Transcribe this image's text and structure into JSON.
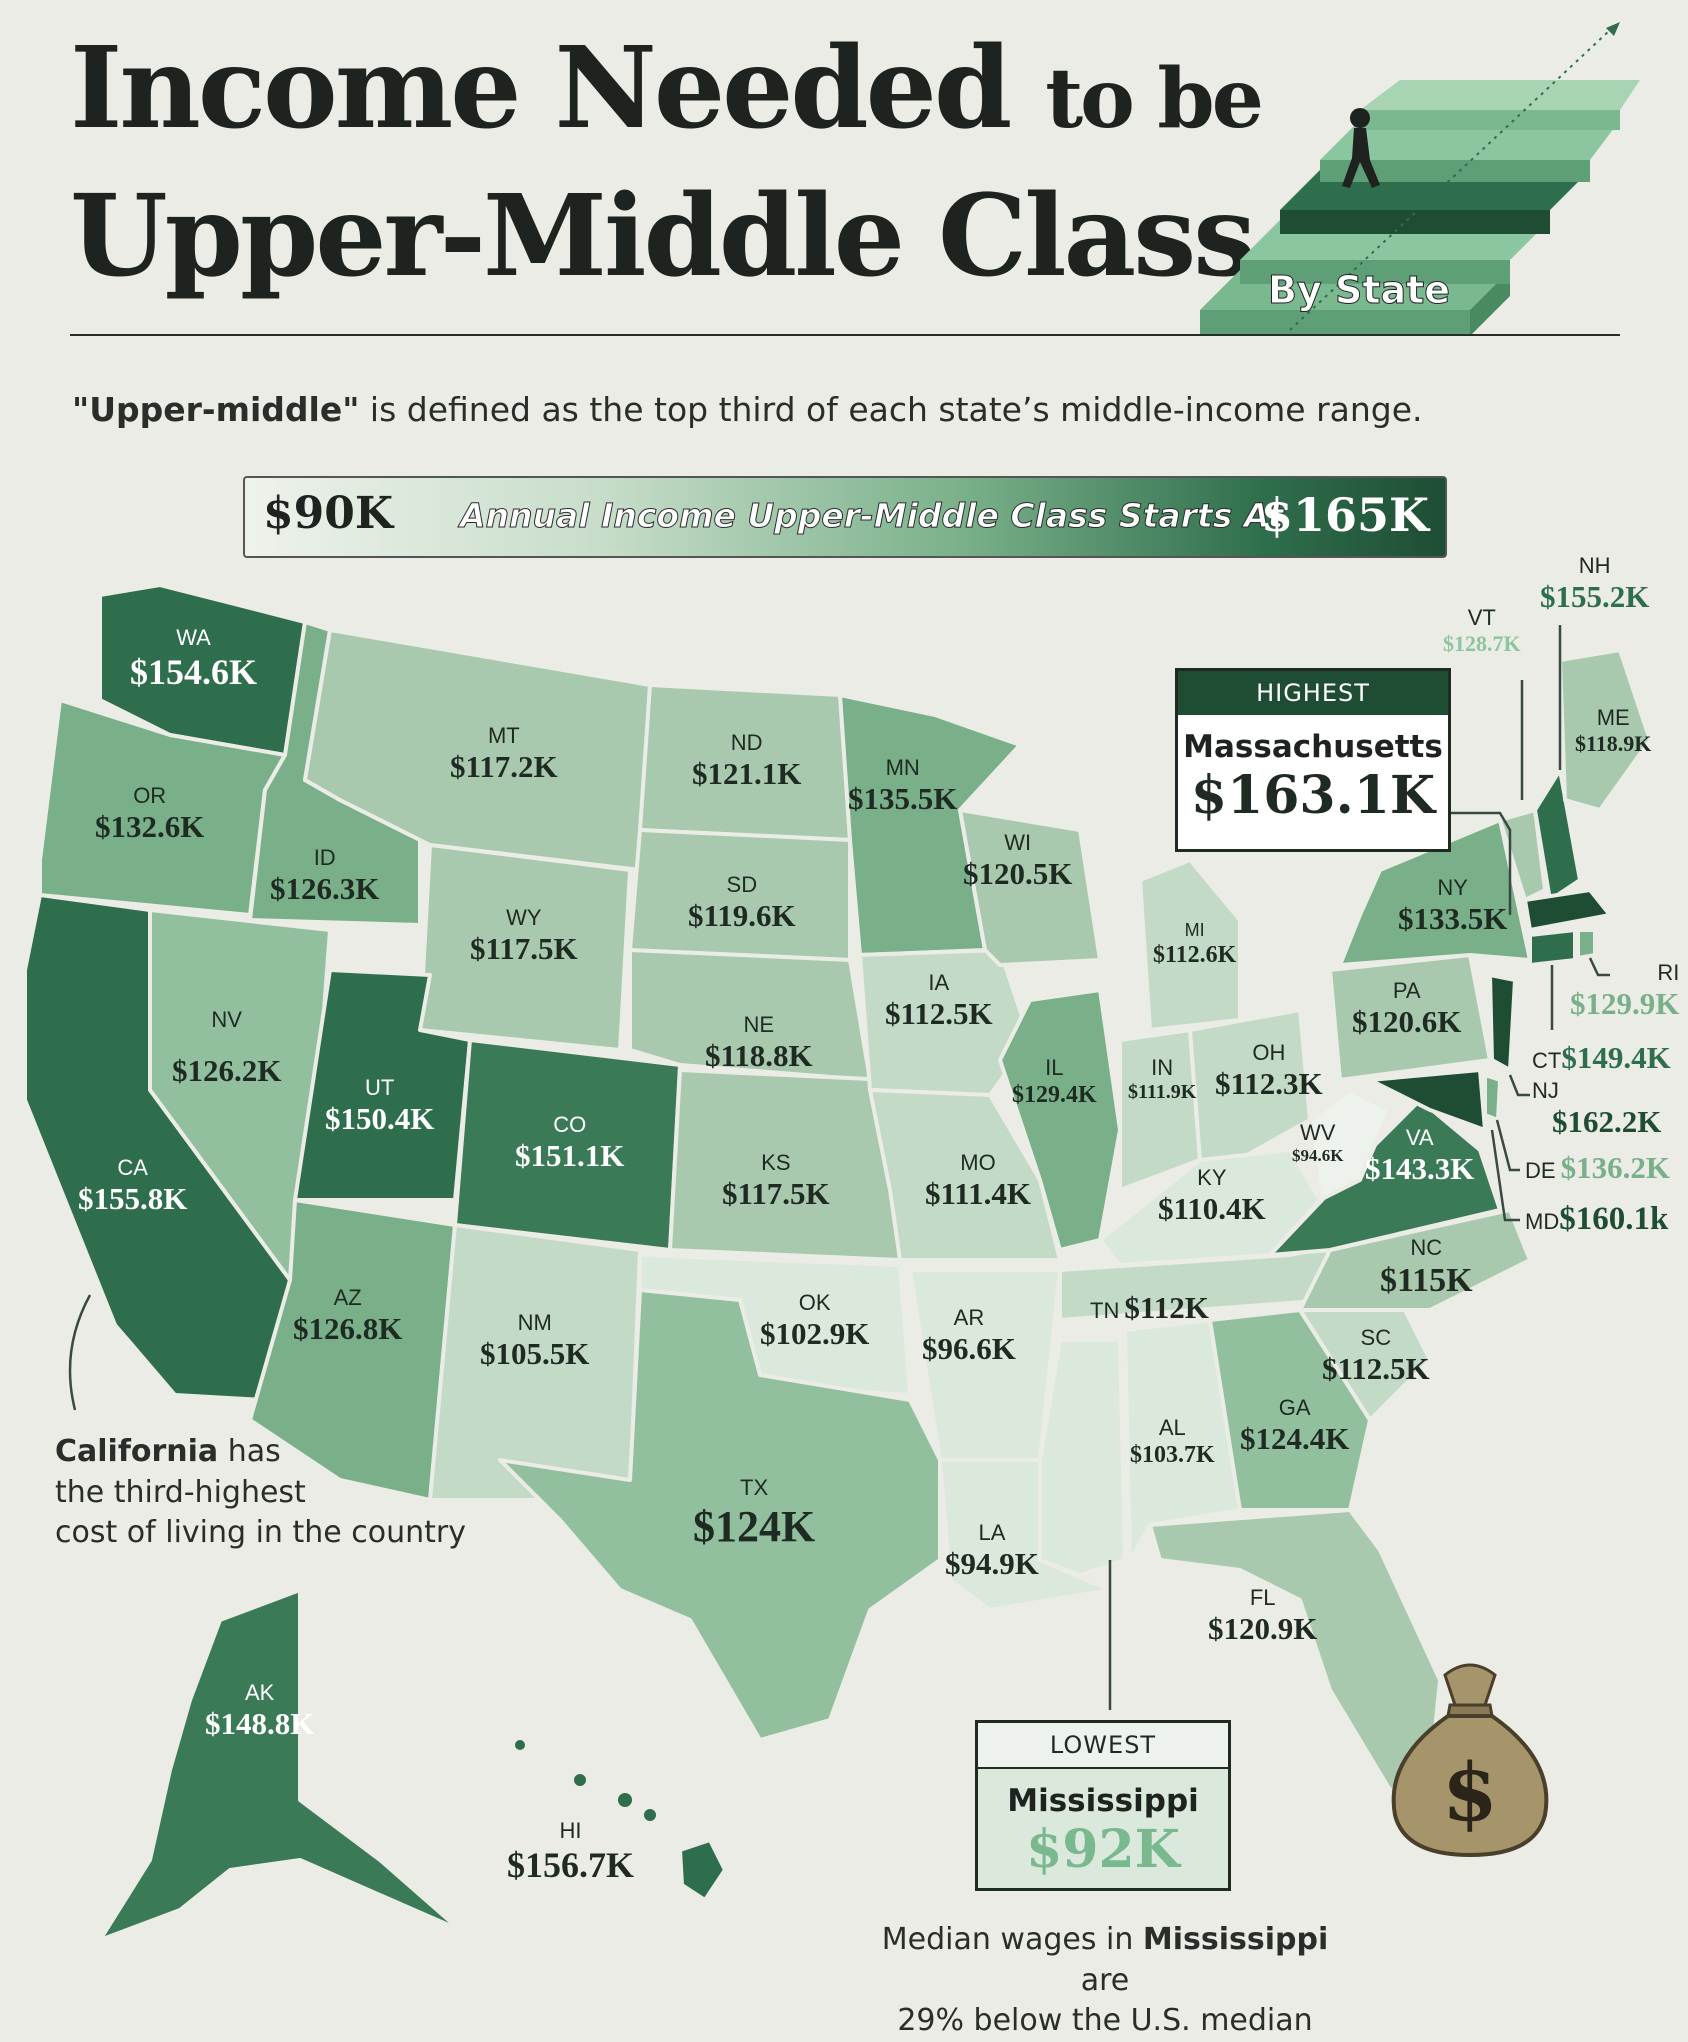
{
  "title": {
    "line1_big": "Income Needed",
    "line1_small": "to be",
    "line2": "Upper-Middle Class",
    "badge": "By State"
  },
  "subtitle": {
    "bold": "\"Upper-middle\"",
    "rest": " is defined as the top third of each state’s middle-income range."
  },
  "legend": {
    "low": "$90K",
    "label": "Annual Income Upper-Middle Class Starts At",
    "high": "$165K"
  },
  "colors": {
    "darkest": "#1e4d34",
    "dark": "#2f6e4c",
    "mid": "#5d9a72",
    "light": "#a8c9ad",
    "lightest": "#dbe8dc",
    "background": "#ebece6"
  },
  "states": {
    "WA": {
      "abbr": "WA",
      "value": "$154.6K"
    },
    "OR": {
      "abbr": "OR",
      "value": "$132.6K"
    },
    "CA": {
      "abbr": "CA",
      "value": "$155.8K"
    },
    "ID": {
      "abbr": "ID",
      "value": "$126.3K"
    },
    "NV": {
      "abbr": "NV",
      "value": "$126.2K"
    },
    "MT": {
      "abbr": "MT",
      "value": "$117.2K"
    },
    "WY": {
      "abbr": "WY",
      "value": "$117.5K"
    },
    "UT": {
      "abbr": "UT",
      "value": "$150.4K"
    },
    "CO": {
      "abbr": "CO",
      "value": "$151.1K"
    },
    "AZ": {
      "abbr": "AZ",
      "value": "$126.8K"
    },
    "NM": {
      "abbr": "NM",
      "value": "$105.5K"
    },
    "ND": {
      "abbr": "ND",
      "value": "$121.1K"
    },
    "SD": {
      "abbr": "SD",
      "value": "$119.6K"
    },
    "NE": {
      "abbr": "NE",
      "value": "$118.8K"
    },
    "KS": {
      "abbr": "KS",
      "value": "$117.5K"
    },
    "OK": {
      "abbr": "OK",
      "value": "$102.9K"
    },
    "TX": {
      "abbr": "TX",
      "value": "$124K"
    },
    "MN": {
      "abbr": "MN",
      "value": "$135.5K"
    },
    "IA": {
      "abbr": "IA",
      "value": "$112.5K"
    },
    "MO": {
      "abbr": "MO",
      "value": "$111.4K"
    },
    "AR": {
      "abbr": "AR",
      "value": "$96.6K"
    },
    "LA": {
      "abbr": "LA",
      "value": "$94.9K"
    },
    "WI": {
      "abbr": "WI",
      "value": "$120.5K"
    },
    "IL": {
      "abbr": "IL",
      "value": "$129.4K"
    },
    "MI": {
      "abbr": "MI",
      "value": "$112.6K"
    },
    "IN": {
      "abbr": "IN",
      "value": "$111.9K"
    },
    "OH": {
      "abbr": "OH",
      "value": "$112.3K"
    },
    "KY": {
      "abbr": "KY",
      "value": "$110.4K"
    },
    "TN": {
      "abbr": "TN",
      "value": "$112K"
    },
    "AL": {
      "abbr": "AL",
      "value": "$103.7K"
    },
    "GA": {
      "abbr": "GA",
      "value": "$124.4K"
    },
    "FL": {
      "abbr": "FL",
      "value": "$120.9K"
    },
    "SC": {
      "abbr": "SC",
      "value": "$112.5K"
    },
    "NC": {
      "abbr": "NC",
      "value": "$115K"
    },
    "VA": {
      "abbr": "VA",
      "value": "$143.3K"
    },
    "WV": {
      "abbr": "WV",
      "value": "$94.6K"
    },
    "PA": {
      "abbr": "PA",
      "value": "$120.6K"
    },
    "NY": {
      "abbr": "NY",
      "value": "$133.5K"
    },
    "VT": {
      "abbr": "VT",
      "value": "$128.7K"
    },
    "NH": {
      "abbr": "NH",
      "value": "$155.2K"
    },
    "ME": {
      "abbr": "ME",
      "value": "$118.9K"
    },
    "RI": {
      "abbr": "RI",
      "value": "$129.9K"
    },
    "CT": {
      "abbr": "CT",
      "value": "$149.4K"
    },
    "NJ": {
      "abbr": "NJ",
      "value": "$162.2K"
    },
    "DE": {
      "abbr": "DE",
      "value": "$136.2K"
    },
    "MD": {
      "abbr": "MD",
      "value": "$160.1k"
    },
    "AK": {
      "abbr": "AK",
      "value": "$148.8K"
    },
    "HI": {
      "abbr": "HI",
      "value": "$156.7K"
    }
  },
  "highest": {
    "header": "HIGHEST",
    "state": "Massachusetts",
    "value": "$163.1K"
  },
  "lowest": {
    "header": "LOWEST",
    "state": "Mississippi",
    "value": "$92K"
  },
  "notes": {
    "california_bold": "California",
    "california_rest1": " has",
    "california_rest2": "the third-highest",
    "california_rest3": "cost of living in the country",
    "ms_line1a": "Median wages in ",
    "ms_line1b": "Mississippi",
    "ms_line1c": " are",
    "ms_line2": "29% below the U.S. median"
  },
  "icons": {
    "money_bag": "money-bag-icon",
    "stairs": "stairs-illustration-icon",
    "arrow_up_right": "arrow-up-right-icon"
  }
}
